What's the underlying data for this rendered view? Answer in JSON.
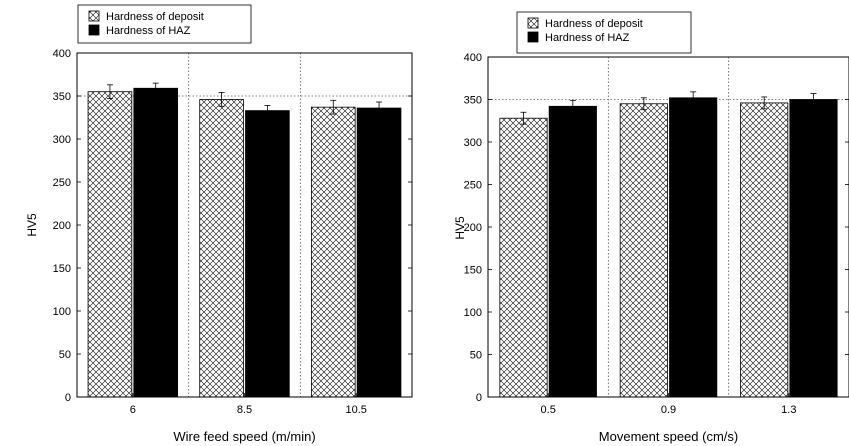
{
  "chart_data": [
    {
      "type": "bar",
      "xlabel": "Wire feed speed (m/min)",
      "ylabel": "HV5",
      "ylim": [
        0,
        400
      ],
      "yticks": [
        0,
        50,
        100,
        150,
        200,
        250,
        300,
        350,
        400
      ],
      "categories": [
        "6",
        "8.5",
        "10.5"
      ],
      "series": [
        {
          "name": "Hardness of deposit",
          "pattern": "crosshatch",
          "values": [
            355,
            346,
            337
          ],
          "errors": [
            8,
            8,
            8
          ]
        },
        {
          "name": "Hardness of HAZ",
          "pattern": "solid",
          "values": [
            359,
            333,
            336
          ],
          "errors": [
            6,
            6,
            7
          ]
        }
      ],
      "grid": "dotted at 350 and between categories",
      "legend": "top-left"
    },
    {
      "type": "bar",
      "xlabel": "Movement speed (cm/s)",
      "ylabel": "HV5",
      "ylim": [
        0,
        400
      ],
      "yticks": [
        0,
        50,
        100,
        150,
        200,
        250,
        300,
        350,
        400
      ],
      "categories": [
        "0.5",
        "0.9",
        "1.3"
      ],
      "series": [
        {
          "name": "Hardness of deposit",
          "pattern": "crosshatch",
          "values": [
            328,
            345,
            346
          ],
          "errors": [
            7,
            7,
            7
          ]
        },
        {
          "name": "Hardness of HAZ",
          "pattern": "solid",
          "values": [
            342,
            352,
            350
          ],
          "errors": [
            7,
            7,
            7
          ]
        }
      ],
      "grid": "dotted at 350 and between categories",
      "legend": "top-left"
    }
  ]
}
